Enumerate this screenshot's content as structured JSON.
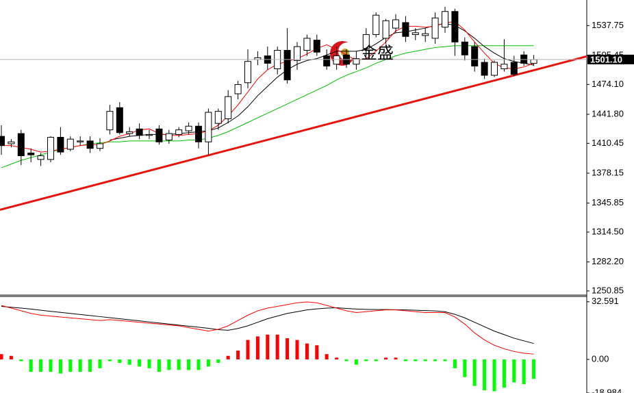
{
  "chart_data": [
    {
      "type": "candlestick",
      "open": [
        1418,
        1410,
        1421,
        1400,
        1393,
        1393,
        1417,
        1404,
        1412,
        1413,
        1405,
        1425,
        1449,
        1421,
        1426,
        1419,
        1426,
        1414,
        1420,
        1424,
        1429,
        1412,
        1432,
        1437,
        1464,
        1476,
        1501,
        1505,
        1491,
        1511,
        1500,
        1511,
        1522,
        1505,
        1496,
        1506,
        1496,
        1513,
        1528,
        1524,
        1535,
        1541,
        1528,
        1527,
        1524,
        1536,
        1553,
        1520,
        1515,
        1498,
        1484,
        1491,
        1498,
        1506,
        1497
      ],
      "high": [
        1430,
        1415,
        1425,
        1405,
        1400,
        1418,
        1428,
        1418,
        1418,
        1418,
        1416,
        1452,
        1455,
        1428,
        1432,
        1425,
        1430,
        1425,
        1428,
        1433,
        1433,
        1448,
        1448,
        1468,
        1478,
        1512,
        1510,
        1515,
        1515,
        1535,
        1520,
        1528,
        1528,
        1512,
        1515,
        1512,
        1510,
        1535,
        1552,
        1545,
        1550,
        1548,
        1535,
        1535,
        1552,
        1558,
        1556,
        1525,
        1520,
        1502,
        1500,
        1523,
        1505,
        1510,
        1506
      ],
      "low": [
        1398,
        1406,
        1387,
        1390,
        1386,
        1390,
        1398,
        1402,
        1408,
        1400,
        1402,
        1420,
        1420,
        1418,
        1415,
        1415,
        1409,
        1410,
        1417,
        1420,
        1405,
        1398,
        1425,
        1432,
        1458,
        1470,
        1495,
        1490,
        1485,
        1475,
        1490,
        1505,
        1505,
        1490,
        1490,
        1492,
        1490,
        1505,
        1525,
        1518,
        1530,
        1520,
        1522,
        1520,
        1518,
        1530,
        1505,
        1500,
        1488,
        1480,
        1482,
        1488,
        1483,
        1494,
        1494
      ],
      "close": [
        1408,
        1412,
        1397,
        1398,
        1397,
        1417,
        1401,
        1415,
        1413,
        1405,
        1410,
        1445,
        1422,
        1423,
        1419,
        1420,
        1412,
        1421,
        1425,
        1429,
        1412,
        1444,
        1445,
        1461,
        1474,
        1499,
        1503,
        1497,
        1511,
        1479,
        1515,
        1524,
        1509,
        1494,
        1505,
        1496,
        1502,
        1528,
        1549,
        1543,
        1544,
        1526,
        1530,
        1529,
        1546,
        1553,
        1520,
        1506,
        1494,
        1484,
        1498,
        1496,
        1485,
        1497,
        1501
      ],
      "lines": [
        {
          "color": "#00c000",
          "values": [
            1384,
            1388,
            1392,
            1395,
            1398,
            1401,
            1404,
            1406,
            1408,
            1410,
            1411,
            1412,
            1412,
            1413,
            1413,
            1413,
            1413,
            1413,
            1413,
            1414,
            1414,
            1416,
            1419,
            1423,
            1428,
            1433,
            1438,
            1443,
            1448,
            1453,
            1458,
            1463,
            1468,
            1473,
            1479,
            1484,
            1488,
            1492,
            1497,
            1501,
            1505,
            1508,
            1510,
            1512,
            1514,
            1515,
            1516,
            1516,
            1516,
            1516,
            1516,
            1516,
            1516,
            1516,
            1516
          ]
        },
        {
          "color": "#000000",
          "values": [
            null,
            null,
            null,
            null,
            null,
            null,
            null,
            null,
            null,
            null,
            null,
            1414,
            1416,
            1418,
            1419,
            1420,
            1420,
            1420,
            1421,
            1422,
            1423,
            1424,
            1427,
            1433,
            1440,
            1450,
            1462,
            1472,
            1482,
            1490,
            1496,
            1500,
            1502,
            1506,
            1510,
            1510,
            1510,
            1512,
            1518,
            1525,
            1530,
            1531,
            1533,
            1535,
            1538,
            1540,
            1538,
            1532,
            1524,
            1515,
            1508,
            1502,
            1499,
            1497,
            1495
          ]
        },
        {
          "color": "#ff0000",
          "values": [
            1408,
            1408,
            1406,
            1404,
            1401,
            1402,
            1404,
            1406,
            1408,
            1409,
            1409,
            1413,
            1418,
            1421,
            1425,
            1426,
            1421,
            1419,
            1419,
            1420,
            1421,
            1424,
            1430,
            1440,
            1452,
            1466,
            1480,
            1490,
            1496,
            1499,
            1502,
            1507,
            1513,
            1517,
            1512,
            1506,
            1500,
            1502,
            1510,
            1520,
            1532,
            1537,
            1537,
            1536,
            1537,
            1541,
            1542,
            1533,
            1520,
            1508,
            1497,
            1492,
            1491,
            1493,
            1497
          ]
        }
      ],
      "trendline": {
        "color": "#e8140c",
        "values": [
          1339,
          1489.5
        ]
      },
      "last_price": {
        "value": 1501.1,
        "label": "1501.10"
      },
      "watermark": "金盛",
      "ylim": [
        1247.1,
        1565.4
      ],
      "yticks": [
        {
          "value": 1537.75,
          "label": "1537.75"
        },
        {
          "value": 1505.45,
          "label": "1505.45"
        },
        {
          "value": 1474.1,
          "label": "1474.10"
        },
        {
          "value": 1441.8,
          "label": "1441.80"
        },
        {
          "value": 1410.45,
          "label": "1410.45"
        },
        {
          "value": 1378.15,
          "label": "1378.15"
        },
        {
          "value": 1345.85,
          "label": "1345.85"
        },
        {
          "value": 1314.5,
          "label": "1314.50"
        },
        {
          "value": 1282.2,
          "label": "1282.20"
        },
        {
          "value": 1250.85,
          "label": "1250.85"
        }
      ]
    },
    {
      "type": "macd",
      "histogram": {
        "up_color": "#ff0000",
        "down_color": "#00ff00",
        "values": [
          3,
          2,
          -1,
          -7,
          -7,
          -7,
          -8,
          -7,
          -7,
          -7,
          -5,
          -1,
          -2,
          -3,
          -4,
          -5,
          -7,
          -6,
          -6,
          -6,
          -6,
          -4,
          -2,
          2,
          5,
          11,
          13,
          14,
          14,
          12,
          11,
          9,
          8,
          3,
          1,
          -1,
          -3,
          -1,
          -1,
          1,
          1,
          -1,
          -1,
          -1,
          -1,
          -1,
          -5,
          -10,
          -15,
          -17.5,
          -18,
          -16,
          -13,
          -14,
          -11
        ]
      },
      "lines": [
        {
          "color": "#000000",
          "values": [
            30,
            29.5,
            29,
            28.5,
            27.8,
            27.2,
            26.6,
            26,
            25.4,
            24.8,
            24.2,
            23.6,
            23,
            22.4,
            21.8,
            21.2,
            20.6,
            20,
            19.4,
            18.8,
            18.2,
            17.6,
            16.8,
            16.5,
            17.5,
            19,
            21,
            23,
            24.5,
            26,
            27,
            28,
            28.6,
            29,
            29.2,
            28.8,
            28.5,
            28.3,
            28.2,
            28.2,
            28.1,
            28,
            27.8,
            27.6,
            27.4,
            27,
            25.5,
            23.5,
            21,
            18.5,
            16,
            14,
            12,
            10.5,
            9
          ]
        },
        {
          "color": "#ff0000",
          "values": [
            30.5,
            29,
            27.5,
            26,
            25,
            24.5,
            24,
            23.5,
            23,
            22.5,
            22,
            22.5,
            22,
            21.5,
            21,
            20.5,
            20,
            19.5,
            19,
            18,
            17,
            16,
            17,
            19,
            22,
            25,
            27.5,
            29,
            30,
            31,
            32,
            32.5,
            32,
            30.5,
            29,
            27.5,
            26.5,
            27,
            27.5,
            28,
            28,
            27.5,
            27,
            26.5,
            26.5,
            26.5,
            24,
            20,
            15,
            11,
            8,
            6,
            4.5,
            3.5,
            3
          ]
        }
      ],
      "ylim": [
        -19,
        35.6
      ],
      "yticks": [
        {
          "value": 32.591,
          "label": "32.591"
        },
        {
          "value": 0,
          "label": "0.00"
        },
        {
          "value": -18.984,
          "label": "-18.984"
        }
      ]
    }
  ]
}
